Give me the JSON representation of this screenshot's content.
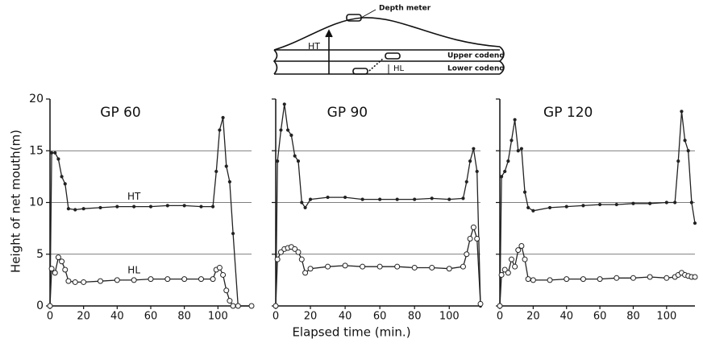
{
  "diagram": {
    "depth_meter": "Depth meter",
    "ht": "HT",
    "upper": "Upper codend",
    "hl": "HL",
    "lower": "Lower codend"
  },
  "chart_data": [
    {
      "type": "line",
      "title": "GP 60",
      "y_label": "Height of net mouth(m)",
      "x": [
        0,
        1,
        3,
        5,
        7,
        9,
        11,
        15,
        20,
        30,
        40,
        50,
        60,
        70,
        80,
        90,
        97,
        99,
        101,
        103,
        105,
        107,
        109,
        112,
        120
      ],
      "series": [
        {
          "name": "HT",
          "color": "#222222",
          "values": [
            0,
            14.8,
            14.8,
            14.2,
            12.5,
            11.8,
            9.4,
            9.3,
            9.4,
            9.5,
            9.6,
            9.6,
            9.6,
            9.7,
            9.7,
            9.6,
            9.6,
            13,
            17,
            18.2,
            13.5,
            12,
            7,
            0,
            0
          ]
        },
        {
          "name": "HL",
          "color": "#222222",
          "values": [
            0,
            3.6,
            3.2,
            4.7,
            4.3,
            3.5,
            2.4,
            2.3,
            2.3,
            2.4,
            2.5,
            2.5,
            2.6,
            2.6,
            2.6,
            2.6,
            2.6,
            3.5,
            3.7,
            3,
            1.5,
            0.5,
            0,
            0,
            0
          ]
        }
      ],
      "xlim": [
        0,
        120
      ],
      "xticks": [
        0,
        20,
        40,
        60,
        80,
        100
      ],
      "ylim": [
        0,
        20
      ],
      "yticks": [
        0,
        5,
        10,
        15,
        20
      ],
      "ytick_labels": true,
      "grid": true
    },
    {
      "type": "line",
      "title": "GP 90",
      "x_label": "Elapsed time (min.)",
      "x": [
        0,
        1,
        3,
        5,
        7,
        9,
        11,
        13,
        15,
        17,
        20,
        30,
        40,
        50,
        60,
        70,
        80,
        90,
        100,
        108,
        110,
        112,
        114,
        116,
        118
      ],
      "series": [
        {
          "name": "HT",
          "color": "#222222",
          "values": [
            0,
            14,
            17,
            19.5,
            17,
            16.5,
            14.5,
            14,
            10,
            9.5,
            10.3,
            10.5,
            10.5,
            10.3,
            10.3,
            10.3,
            10.3,
            10.4,
            10.3,
            10.4,
            12,
            14,
            15.2,
            13,
            0
          ]
        },
        {
          "name": "HL",
          "color": "#222222",
          "values": [
            0,
            4.5,
            5.2,
            5.5,
            5.6,
            5.7,
            5.5,
            5.2,
            4.5,
            3.2,
            3.6,
            3.8,
            3.9,
            3.8,
            3.8,
            3.8,
            3.7,
            3.7,
            3.6,
            3.8,
            5,
            6.5,
            7.6,
            6.5,
            0.2
          ]
        }
      ],
      "xlim": [
        0,
        118
      ],
      "xticks": [
        0,
        20,
        40,
        60,
        80,
        100
      ],
      "ylim": [
        0,
        20
      ],
      "yticks": [
        0,
        5,
        10,
        15,
        20
      ],
      "ytick_labels": false,
      "grid": true
    },
    {
      "type": "line",
      "title": "GP 120",
      "x": [
        0,
        1,
        3,
        5,
        7,
        9,
        11,
        13,
        15,
        17,
        20,
        30,
        40,
        50,
        60,
        70,
        80,
        90,
        100,
        105,
        107,
        109,
        111,
        113,
        115,
        117
      ],
      "series": [
        {
          "name": "HT",
          "color": "#222222",
          "values": [
            0,
            12.5,
            13,
            14,
            16,
            18,
            15,
            15.2,
            11,
            9.5,
            9.2,
            9.5,
            9.6,
            9.7,
            9.8,
            9.8,
            9.9,
            9.9,
            10,
            10,
            14,
            18.8,
            16,
            15,
            10,
            8
          ]
        },
        {
          "name": "HL",
          "color": "#222222",
          "values": [
            0,
            3,
            3.5,
            3.2,
            4.5,
            3.8,
            5.4,
            5.8,
            4.5,
            2.6,
            2.5,
            2.5,
            2.6,
            2.6,
            2.6,
            2.7,
            2.7,
            2.8,
            2.7,
            2.8,
            3,
            3.2,
            3,
            2.9,
            2.8,
            2.8
          ]
        }
      ],
      "xlim": [
        0,
        117
      ],
      "xticks": [
        0,
        20,
        40,
        60,
        80,
        100
      ],
      "ylim": [
        0,
        20
      ],
      "yticks": [
        0,
        5,
        10,
        15,
        20
      ],
      "ytick_labels": false,
      "grid": true
    }
  ]
}
